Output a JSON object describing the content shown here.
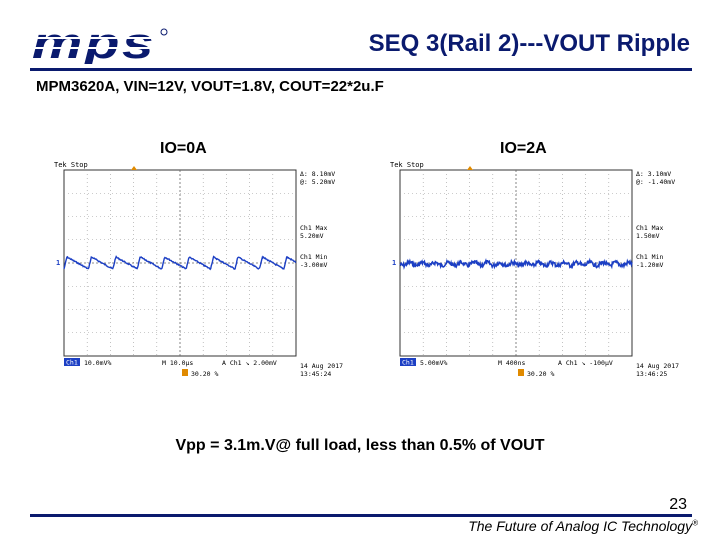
{
  "header": {
    "logo_text": "mps",
    "title": "SEQ 3(Rail 2)---VOUT Ripple"
  },
  "subtitle": "MPM3620A, VIN=12V, VOUT=1.8V, COUT=22*2u.F",
  "panels": [
    {
      "label": "IO=0A",
      "scope": {
        "status": "Tek Stop",
        "delta": "Δ: 8.10mV",
        "at": "@: 5.20mV",
        "ch1_max_label": "Ch1 Max",
        "ch1_max_value": "5.20mV",
        "ch1_min_label": "Ch1 Min",
        "ch1_min_value": "-3.00mV",
        "ch1_scale": "10.0mV%",
        "timebase": "M 10.0µs",
        "trigger": "A  Ch1  ↘  2.00mV",
        "date": "14 Aug 2017",
        "time": "13:45:24",
        "trigger_pos": "30.20 %"
      }
    },
    {
      "label": "IO=2A",
      "scope": {
        "status": "Tek Stop",
        "delta": "Δ: 3.10mV",
        "at": "@: -1.40mV",
        "ch1_max_label": "Ch1 Max",
        "ch1_max_value": "1.50mV",
        "ch1_min_label": "Ch1 Min",
        "ch1_min_value": "-1.20mV",
        "ch1_scale": "5.00mV%",
        "timebase": "M 400ns",
        "trigger": "A  Ch1  ↘  -100µV",
        "date": "14 Aug 2017",
        "time": "13:46:25",
        "trigger_pos": "30.20 %"
      }
    }
  ],
  "caption": "Vpp = 3.1m.V@ full load, less than 0.5% of VOUT",
  "footer": {
    "page_number": "23",
    "tagline": "The Future of Analog IC Technology",
    "registered_mark": "®"
  },
  "colors": {
    "brand": "#0a1a6e",
    "trace": "#1c3fc4",
    "cursor": "#e08a00"
  }
}
